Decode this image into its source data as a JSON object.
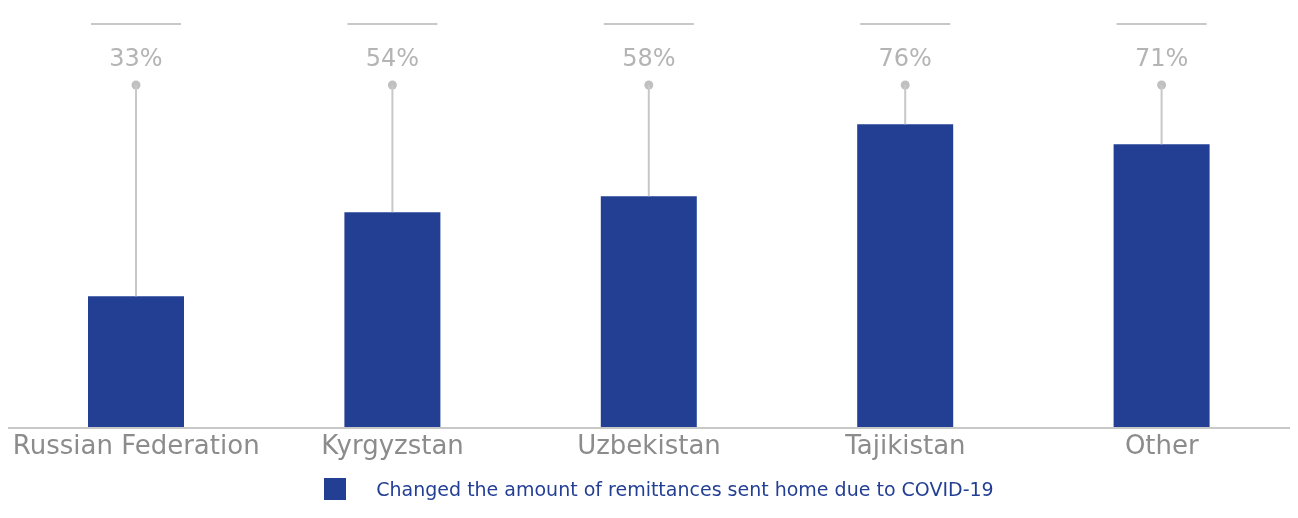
{
  "chart_data": {
    "type": "bar",
    "categories": [
      "Russian Federation",
      "Kyrgyzstan",
      "Uzbekistan",
      "Tajikistan",
      "Other"
    ],
    "series": [
      {
        "name": "Changed the amount of remittances sent home due to COVID-19",
        "color": "#233f94",
        "values": [
          33,
          54,
          58,
          76,
          71
        ],
        "value_labels": [
          "33%",
          "54%",
          "58%",
          "76%",
          "71%"
        ]
      }
    ],
    "legend": "bottom",
    "grid": false
  }
}
